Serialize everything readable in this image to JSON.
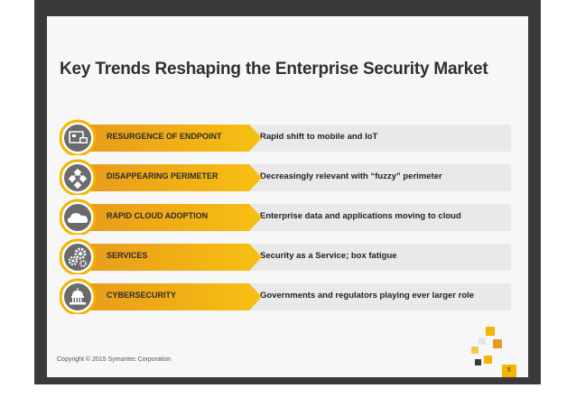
{
  "slide": {
    "title": "Key Trends Reshaping the Enterprise Security Market",
    "copyright": "Copyright © 2015 Symantec Corporation",
    "page_number": "5"
  },
  "trends": [
    {
      "label": "RESURGENCE OF ENDPOINT",
      "description": "Rapid shift to mobile and IoT",
      "icon": "devices-icon"
    },
    {
      "label": "DISAPPEARING PERIMETER",
      "description": "Decreasingly relevant with “fuzzy” perimeter",
      "icon": "network-icon"
    },
    {
      "label": "RAPID CLOUD ADOPTION",
      "description": "Enterprise data and applications moving to cloud",
      "icon": "cloud-icon"
    },
    {
      "label": "SERVICES",
      "description": "Security as a Service; box fatigue",
      "icon": "gears-icon"
    },
    {
      "label": "CYBERSECURITY",
      "description": "Governments and regulators playing ever larger role",
      "icon": "capitol-icon"
    }
  ],
  "colors": {
    "accent_yellow": "#f5b400",
    "accent_gold": "#e89a1b",
    "icon_gray": "#6b6b6b",
    "bar_gray": "#e9e9e9",
    "frame_dark": "#3a3a3a"
  }
}
